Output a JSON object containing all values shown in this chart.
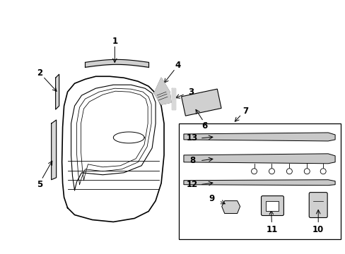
{
  "bg_color": "#ffffff",
  "line_color": "#000000",
  "fig_width": 4.89,
  "fig_height": 3.6,
  "dpi": 100,
  "door": {
    "outer_x": [
      1.05,
      1.0,
      0.98,
      0.97,
      0.98,
      1.05,
      1.55,
      2.15,
      2.38,
      2.48,
      2.52,
      2.52,
      2.45,
      2.35,
      1.6,
      1.05
    ],
    "outer_y": [
      0.22,
      0.35,
      0.5,
      0.8,
      1.3,
      1.5,
      1.6,
      1.62,
      1.6,
      1.5,
      1.38,
      0.8,
      0.4,
      0.25,
      0.22,
      0.22
    ]
  }
}
